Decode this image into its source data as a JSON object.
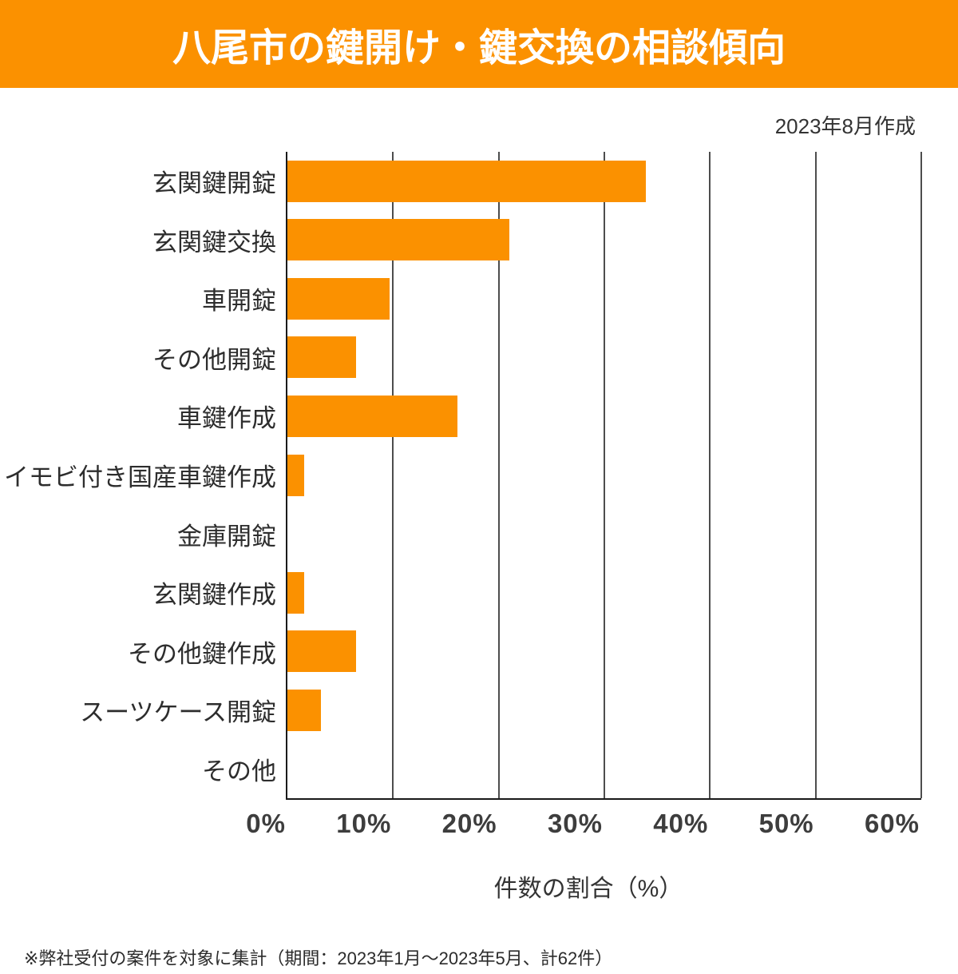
{
  "header": {
    "title": "八尾市の鍵開け・鍵交換の相談傾向"
  },
  "meta": {
    "created_note": "2023年8月作成"
  },
  "chart_data": {
    "type": "bar",
    "orientation": "horizontal",
    "title": "八尾市の鍵開け・鍵交換の相談傾向",
    "categories": [
      "玄関鍵開錠",
      "玄関鍵交換",
      "車開錠",
      "その他開錠",
      "車鍵作成",
      "イモビ付き国産車鍵作成",
      "金庫開錠",
      "玄関鍵作成",
      "その他鍵作成",
      "スーツケース開錠",
      "その他"
    ],
    "values": [
      33.9,
      21.0,
      9.7,
      6.5,
      16.1,
      1.6,
      0,
      1.6,
      6.5,
      3.2,
      0
    ],
    "unit": "%",
    "xlabel": "件数の割合（%）",
    "ylabel": "",
    "xlim": [
      0,
      60
    ],
    "x_ticks": [
      "0%",
      "10%",
      "20%",
      "30%",
      "40%",
      "50%",
      "60%"
    ],
    "bar_color": "#fb9100",
    "grid": true,
    "legend": false
  },
  "colors": {
    "accent_orange": "#fb9100",
    "axis": "#1a1a1a",
    "gridline": "#4d4d4d",
    "text": "#2d2d2d"
  },
  "footnote": "※弊社受付の案件を対象に集計（期間：2023年1月～2023年5月、計62件）"
}
